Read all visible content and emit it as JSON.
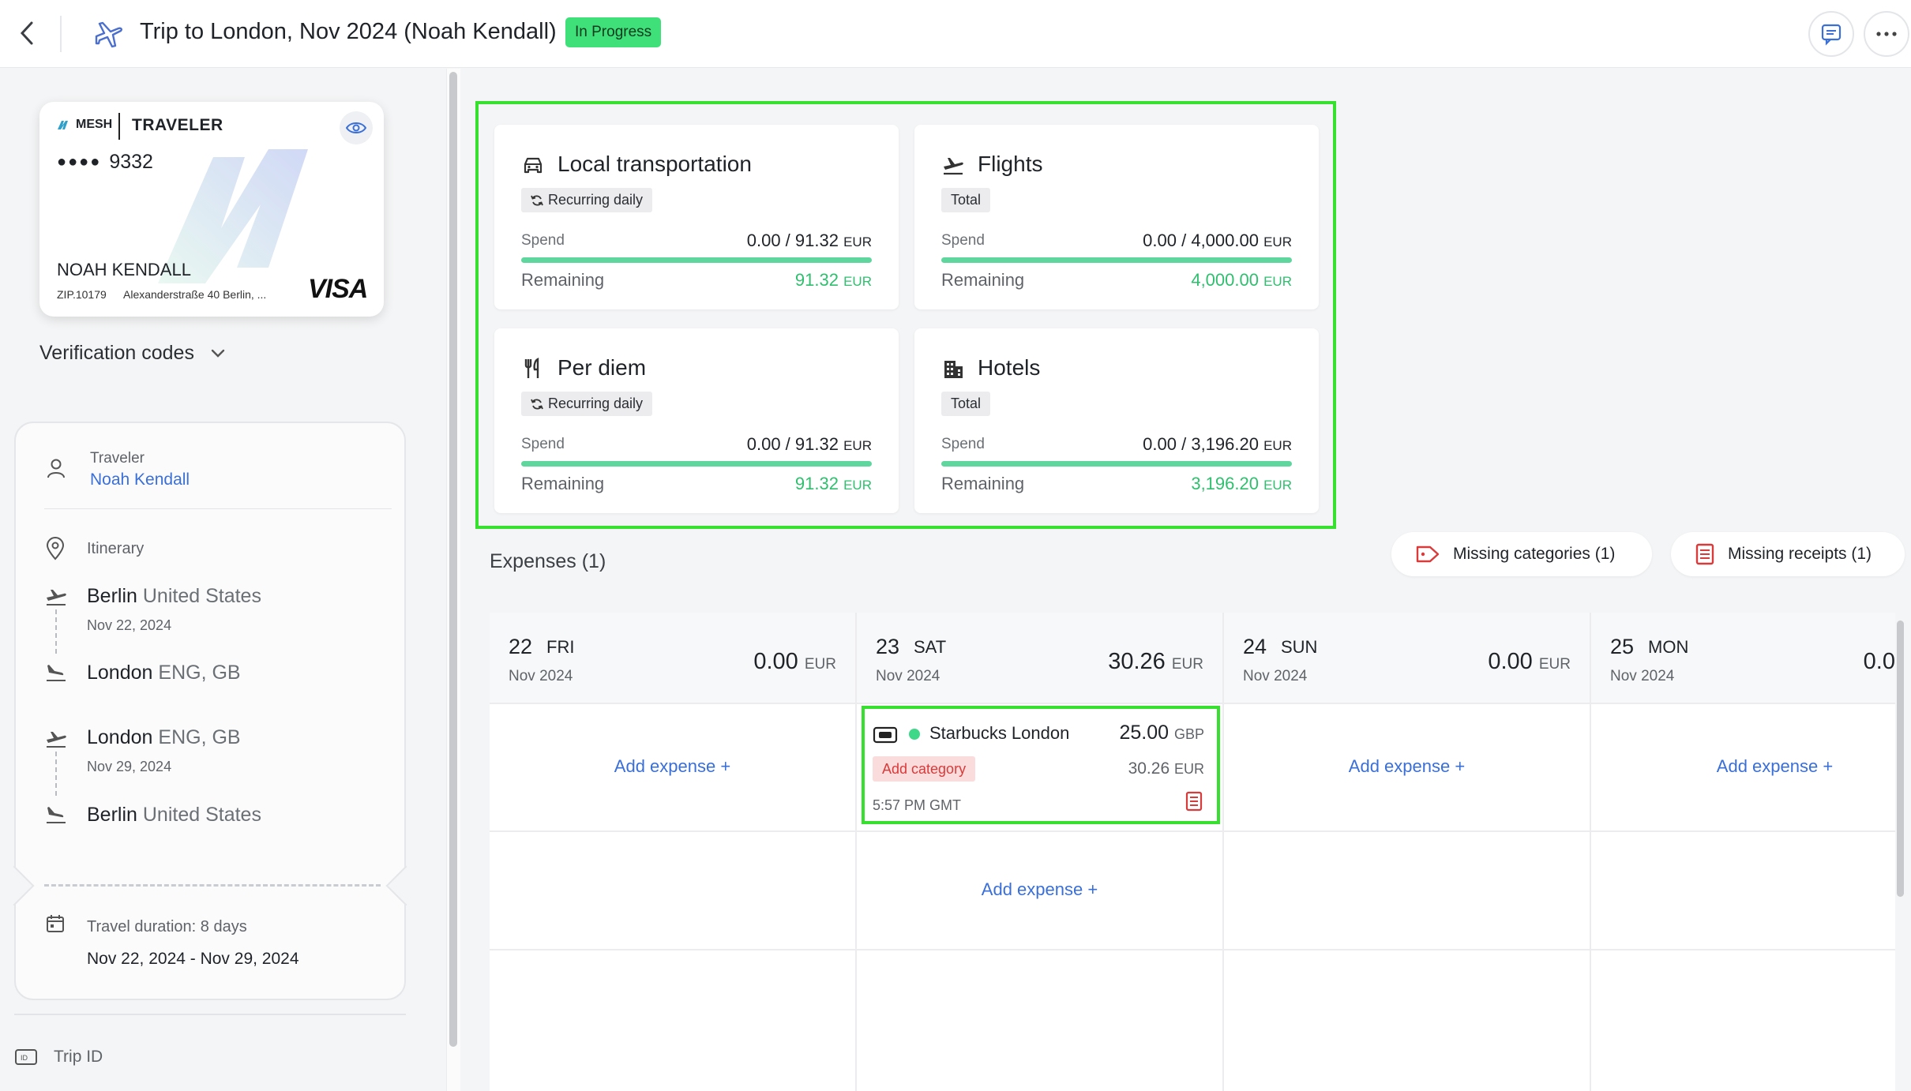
{
  "header": {
    "title": "Trip to London, Nov 2024 (Noah Kendall)",
    "status": "In Progress"
  },
  "card": {
    "brand": "MESH",
    "type": "TRAVELER",
    "dots": "●●●●",
    "last4": "9332",
    "holder": "NOAH KENDALL",
    "zip": "ZIP.10179",
    "address": "Alexanderstraße 40 Berlin, ...",
    "network": "VISA"
  },
  "verification": {
    "label": "Verification codes"
  },
  "traveler": {
    "label": "Traveler",
    "name": "Noah Kendall"
  },
  "itinerary": {
    "label": "Itinerary",
    "legs": [
      {
        "city": "Berlin",
        "region": "United States",
        "date": "Nov 22, 2024"
      },
      {
        "city": "London",
        "region": "ENG, GB",
        "date": ""
      },
      {
        "city": "London",
        "region": "ENG, GB",
        "date": "Nov 29, 2024"
      },
      {
        "city": "Berlin",
        "region": "United States",
        "date": ""
      }
    ]
  },
  "duration": {
    "label": "Travel duration: 8 days",
    "range": "Nov 22, 2024 - Nov 29, 2024"
  },
  "trip_id": {
    "label": "Trip ID"
  },
  "budgets": [
    {
      "name": "Local transportation",
      "icon": "car-icon",
      "tag": "Recurring daily",
      "spend_label": "Spend",
      "spend": "0.00 / 91.32",
      "unit": "EUR",
      "remaining_label": "Remaining",
      "remaining": "91.32",
      "spent_fraction": 0.0
    },
    {
      "name": "Flights",
      "icon": "plane-icon",
      "tag": "Total",
      "spend_label": "Spend",
      "spend": "0.00 / 4,000.00",
      "unit": "EUR",
      "remaining_label": "Remaining",
      "remaining": "4,000.00",
      "spent_fraction": 0.0
    },
    {
      "name": "Per diem",
      "icon": "fork-knife-icon",
      "tag": "Recurring daily",
      "spend_label": "Spend",
      "spend": "0.00 / 91.32",
      "unit": "EUR",
      "remaining_label": "Remaining",
      "remaining": "91.32",
      "spent_fraction": 0.0
    },
    {
      "name": "Hotels",
      "icon": "building-icon",
      "tag": "Total",
      "spend_label": "Spend",
      "spend": "0.00 / 3,196.20",
      "unit": "EUR",
      "remaining_label": "Remaining",
      "remaining": "3,196.20",
      "spent_fraction": 0.0
    }
  ],
  "expenses": {
    "title": "Expenses (1)",
    "missing_categories": "Missing categories (1)",
    "missing_receipts": "Missing receipts (1)",
    "add_label": "Add expense +",
    "days": [
      {
        "num": "22",
        "name": "FRI",
        "month": "Nov 2024",
        "total": "0.00",
        "unit": "EUR"
      },
      {
        "num": "23",
        "name": "SAT",
        "month": "Nov 2024",
        "total": "30.26",
        "unit": "EUR"
      },
      {
        "num": "24",
        "name": "SUN",
        "month": "Nov 2024",
        "total": "0.00",
        "unit": "EUR"
      },
      {
        "num": "25",
        "name": "MON",
        "month": "Nov 2024",
        "total": "0.0",
        "unit": ""
      }
    ],
    "item": {
      "merchant": "Starbucks London",
      "amount": "25.00",
      "amount_unit": "GBP",
      "category_button": "Add category",
      "converted": "30.26",
      "converted_unit": "EUR",
      "time": "5:57 PM GMT"
    }
  },
  "colors": {
    "accent_green": "#3fe07a",
    "link_blue": "#3a6fd8",
    "highlight": "#37e02f",
    "remaining_green": "#2fbf6e"
  }
}
